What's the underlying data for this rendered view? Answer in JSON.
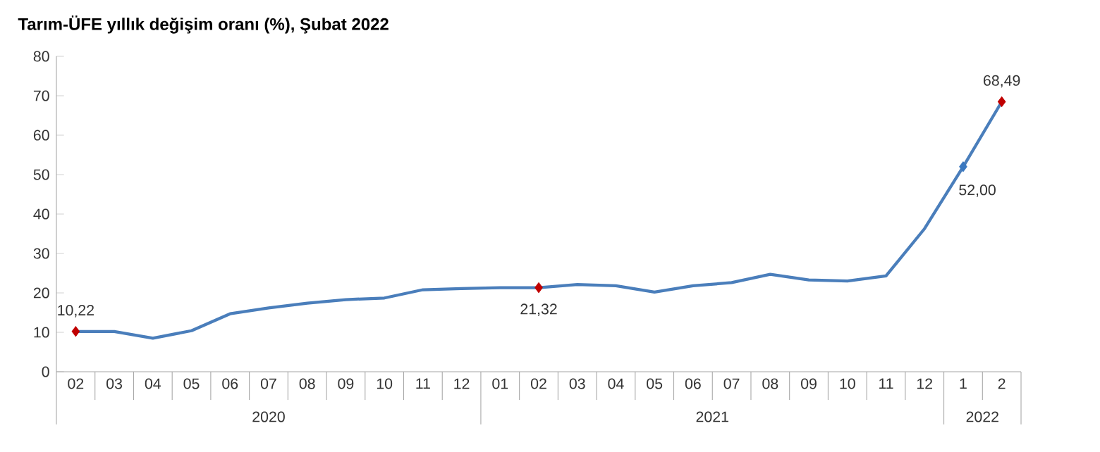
{
  "chart_data": {
    "type": "line",
    "title": "Tarım-ÜFE yıllık değişim oranı (%), Şubat 2022",
    "categories": [
      "02",
      "03",
      "04",
      "05",
      "06",
      "07",
      "08",
      "09",
      "10",
      "11",
      "12",
      "01",
      "02",
      "03",
      "04",
      "05",
      "06",
      "07",
      "08",
      "09",
      "10",
      "11",
      "12",
      "1",
      "2"
    ],
    "ylim": [
      0,
      80
    ],
    "yticks": [
      0,
      10,
      20,
      30,
      40,
      50,
      60,
      70,
      80
    ],
    "line_style": "solid",
    "annotations": [
      "2020",
      "2021",
      "2022"
    ],
    "series": [
      {
        "color": "#4a7ebb",
        "values": [
          10.22,
          10.2,
          8.5,
          10.4,
          14.7,
          16.2,
          17.4,
          18.3,
          18.7,
          20.8,
          21.1,
          21.3,
          21.32,
          22.1,
          21.8,
          20.2,
          21.8,
          22.6,
          24.7,
          23.3,
          23.0,
          24.3,
          36.3,
          52.0,
          68.49
        ],
        "value_labels": [
          "10,22",
          null,
          null,
          null,
          null,
          null,
          null,
          null,
          null,
          null,
          null,
          null,
          "21,32",
          null,
          null,
          null,
          null,
          null,
          null,
          null,
          null,
          null,
          null,
          "52,00",
          "68,49"
        ]
      },
      {
        "type": "scatter",
        "marker": "diamond",
        "color": "#c00000",
        "values": [
          10.22,
          null,
          null,
          null,
          null,
          null,
          null,
          null,
          null,
          null,
          null,
          null,
          21.32,
          null,
          null,
          null,
          null,
          null,
          null,
          null,
          null,
          null,
          null,
          52.0,
          68.49
        ],
        "colors": [
          "#c00000",
          null,
          null,
          null,
          null,
          null,
          null,
          null,
          null,
          null,
          null,
          null,
          "#c00000",
          null,
          null,
          null,
          null,
          null,
          null,
          null,
          null,
          null,
          null,
          "#3a78c0",
          "#c00000"
        ]
      }
    ]
  }
}
